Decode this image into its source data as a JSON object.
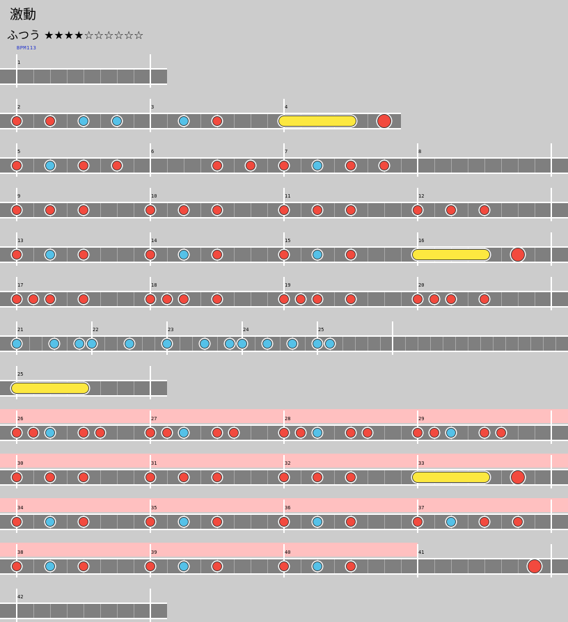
{
  "song": {
    "title": "激動",
    "difficulty": "ふつう ★★★★☆☆☆☆☆☆",
    "bpm_label": "BPM113"
  },
  "rows": [
    {
      "start_measure": 1,
      "measures": 1,
      "gogo": false,
      "barline_end": true,
      "notes": []
    },
    {
      "start_measure": 2,
      "measures": 2.75,
      "gogo": false,
      "barline_end": false,
      "notes": [
        {
          "t": 0,
          "k": "d"
        },
        {
          "t": 2,
          "k": "d"
        },
        {
          "t": 4,
          "k": "k"
        },
        {
          "t": 6,
          "k": "k"
        },
        {
          "t": 10,
          "k": "k"
        },
        {
          "t": 12,
          "k": "d"
        },
        {
          "t": 16,
          "k": "roll",
          "end": 20
        },
        {
          "t": 22,
          "k": "D"
        }
      ]
    },
    {
      "start_measure": 5,
      "measures": 4,
      "gogo": false,
      "barline_end": true,
      "notes": [
        {
          "t": 0,
          "k": "d"
        },
        {
          "t": 2,
          "k": "k"
        },
        {
          "t": 4,
          "k": "d"
        },
        {
          "t": 6,
          "k": "d"
        },
        {
          "t": 12,
          "k": "d"
        },
        {
          "t": 14,
          "k": "d"
        },
        {
          "t": 16,
          "k": "d"
        },
        {
          "t": 18,
          "k": "k"
        },
        {
          "t": 20,
          "k": "d"
        },
        {
          "t": 22,
          "k": "d"
        }
      ]
    },
    {
      "start_measure": 9,
      "measures": 4,
      "gogo": false,
      "barline_end": true,
      "notes": [
        {
          "t": 0,
          "k": "d"
        },
        {
          "t": 2,
          "k": "d"
        },
        {
          "t": 4,
          "k": "d"
        },
        {
          "t": 8,
          "k": "d"
        },
        {
          "t": 10,
          "k": "d"
        },
        {
          "t": 12,
          "k": "d"
        },
        {
          "t": 16,
          "k": "d"
        },
        {
          "t": 18,
          "k": "d"
        },
        {
          "t": 20,
          "k": "d"
        },
        {
          "t": 24,
          "k": "d"
        },
        {
          "t": 26,
          "k": "d"
        },
        {
          "t": 28,
          "k": "d"
        }
      ]
    },
    {
      "start_measure": 13,
      "measures": 4,
      "gogo": false,
      "barline_end": true,
      "notes": [
        {
          "t": 0,
          "k": "d"
        },
        {
          "t": 2,
          "k": "k"
        },
        {
          "t": 4,
          "k": "d"
        },
        {
          "t": 8,
          "k": "d"
        },
        {
          "t": 10,
          "k": "k"
        },
        {
          "t": 12,
          "k": "d"
        },
        {
          "t": 16,
          "k": "d"
        },
        {
          "t": 18,
          "k": "k"
        },
        {
          "t": 20,
          "k": "d"
        },
        {
          "t": 24,
          "k": "roll",
          "end": 28
        },
        {
          "t": 30,
          "k": "D"
        }
      ]
    },
    {
      "start_measure": 17,
      "measures": 4,
      "gogo": false,
      "barline_end": true,
      "notes": [
        {
          "t": 0,
          "k": "d"
        },
        {
          "t": 1,
          "k": "d"
        },
        {
          "t": 2,
          "k": "d"
        },
        {
          "t": 4,
          "k": "d"
        },
        {
          "t": 8,
          "k": "d"
        },
        {
          "t": 9,
          "k": "d"
        },
        {
          "t": 10,
          "k": "d"
        },
        {
          "t": 12,
          "k": "d"
        },
        {
          "t": 16,
          "k": "d"
        },
        {
          "t": 17,
          "k": "d"
        },
        {
          "t": 18,
          "k": "d"
        },
        {
          "t": 20,
          "k": "d"
        },
        {
          "t": 24,
          "k": "d"
        },
        {
          "t": 25,
          "k": "d"
        },
        {
          "t": 26,
          "k": "d"
        },
        {
          "t": 28,
          "k": "d"
        }
      ]
    },
    {
      "start_measure": 21,
      "measures": 4,
      "gogo": false,
      "barline_end": true,
      "scale": 0.75,
      "barlines": [
        0,
        6,
        12,
        18,
        24
      ],
      "notes": [
        {
          "t": 0,
          "k": "k"
        },
        {
          "t": 3,
          "k": "k"
        },
        {
          "t": 5,
          "k": "k"
        },
        {
          "t": 6,
          "k": "k"
        },
        {
          "t": 9,
          "k": "k"
        },
        {
          "t": 12,
          "k": "k"
        },
        {
          "t": 15,
          "k": "k"
        },
        {
          "t": 17,
          "k": "k"
        },
        {
          "t": 18,
          "k": "k"
        },
        {
          "t": 20,
          "k": "k"
        },
        {
          "t": 22,
          "k": "k"
        },
        {
          "t": 24,
          "k": "k"
        },
        {
          "t": 25,
          "k": "k"
        }
      ]
    },
    {
      "start_measure": 25,
      "measures": 1,
      "gogo": false,
      "barline_end": true,
      "notes": [
        {
          "t": 0,
          "k": "roll",
          "end": 4
        }
      ]
    },
    {
      "start_measure": 26,
      "measures": 4,
      "gogo": true,
      "barline_end": true,
      "notes": [
        {
          "t": 0,
          "k": "d"
        },
        {
          "t": 1,
          "k": "d"
        },
        {
          "t": 2,
          "k": "k"
        },
        {
          "t": 4,
          "k": "d"
        },
        {
          "t": 5,
          "k": "d"
        },
        {
          "t": 8,
          "k": "d"
        },
        {
          "t": 9,
          "k": "d"
        },
        {
          "t": 10,
          "k": "k"
        },
        {
          "t": 12,
          "k": "d"
        },
        {
          "t": 13,
          "k": "d"
        },
        {
          "t": 16,
          "k": "d"
        },
        {
          "t": 17,
          "k": "d"
        },
        {
          "t": 18,
          "k": "k"
        },
        {
          "t": 20,
          "k": "d"
        },
        {
          "t": 21,
          "k": "d"
        },
        {
          "t": 24,
          "k": "d"
        },
        {
          "t": 25,
          "k": "d"
        },
        {
          "t": 26,
          "k": "k"
        },
        {
          "t": 28,
          "k": "d"
        },
        {
          "t": 29,
          "k": "d"
        }
      ]
    },
    {
      "start_measure": 30,
      "measures": 4,
      "gogo": true,
      "barline_end": true,
      "notes": [
        {
          "t": 0,
          "k": "d"
        },
        {
          "t": 2,
          "k": "d"
        },
        {
          "t": 4,
          "k": "d"
        },
        {
          "t": 8,
          "k": "d"
        },
        {
          "t": 10,
          "k": "d"
        },
        {
          "t": 12,
          "k": "d"
        },
        {
          "t": 16,
          "k": "d"
        },
        {
          "t": 18,
          "k": "d"
        },
        {
          "t": 20,
          "k": "d"
        },
        {
          "t": 24,
          "k": "roll",
          "end": 28
        },
        {
          "t": 30,
          "k": "D"
        }
      ]
    },
    {
      "start_measure": 34,
      "measures": 4,
      "gogo": true,
      "barline_end": true,
      "notes": [
        {
          "t": 0,
          "k": "d"
        },
        {
          "t": 2,
          "k": "k"
        },
        {
          "t": 4,
          "k": "d"
        },
        {
          "t": 8,
          "k": "d"
        },
        {
          "t": 10,
          "k": "k"
        },
        {
          "t": 12,
          "k": "d"
        },
        {
          "t": 16,
          "k": "d"
        },
        {
          "t": 18,
          "k": "k"
        },
        {
          "t": 20,
          "k": "d"
        },
        {
          "t": 24,
          "k": "d"
        },
        {
          "t": 26,
          "k": "k"
        },
        {
          "t": 28,
          "k": "d"
        },
        {
          "t": 30,
          "k": "d"
        }
      ]
    },
    {
      "start_measure": 38,
      "measures": 4,
      "gogo": true,
      "gogo_measures": 3,
      "barline_end": true,
      "notes": [
        {
          "t": 0,
          "k": "d"
        },
        {
          "t": 2,
          "k": "k"
        },
        {
          "t": 4,
          "k": "d"
        },
        {
          "t": 8,
          "k": "d"
        },
        {
          "t": 10,
          "k": "k"
        },
        {
          "t": 12,
          "k": "d"
        },
        {
          "t": 16,
          "k": "d"
        },
        {
          "t": 18,
          "k": "k"
        },
        {
          "t": 20,
          "k": "d"
        },
        {
          "t": 31,
          "k": "D"
        }
      ]
    },
    {
      "start_measure": 42,
      "measures": 1,
      "gogo": false,
      "barline_end": true,
      "notes": []
    }
  ]
}
